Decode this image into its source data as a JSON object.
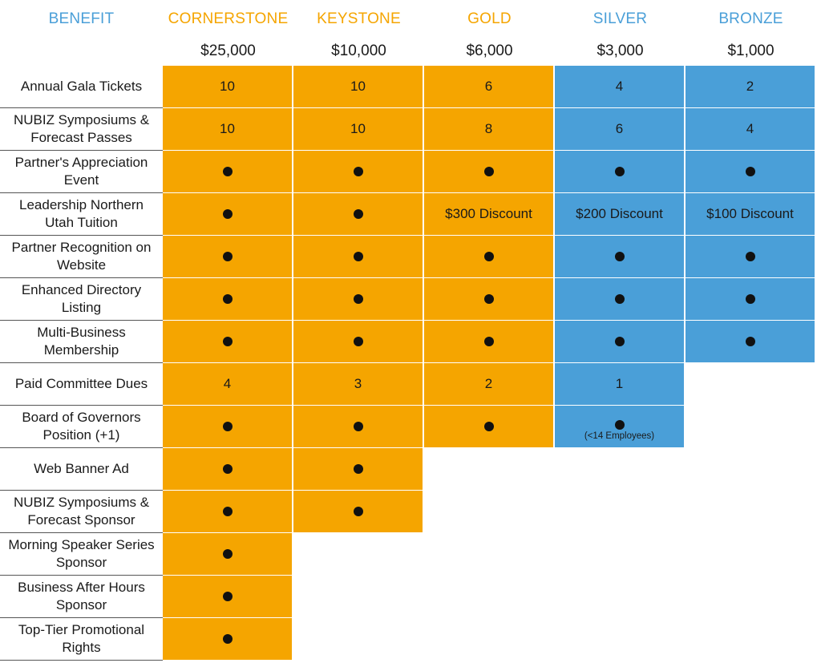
{
  "header": {
    "benefit_label": "BENEFIT",
    "tiers": [
      {
        "name": "CORNERSTONE",
        "price": "$25,000",
        "color": "#f5a500"
      },
      {
        "name": "KEYSTONE",
        "price": "$10,000",
        "color": "#f5a500"
      },
      {
        "name": "GOLD",
        "price": "$6,000",
        "color": "#f5a500"
      },
      {
        "name": "SILVER",
        "price": "$3,000",
        "color": "#4a9fd8"
      },
      {
        "name": "BRONZE",
        "price": "$1,000",
        "color": "#4a9fd8"
      }
    ],
    "benefit_color": "#4a9fd8"
  },
  "colors": {
    "orange": "#f5a500",
    "blue": "#4a9fd8"
  },
  "rows": [
    {
      "benefit": "Annual Gala Tickets",
      "values": [
        "10",
        "10",
        "6",
        "4",
        "2"
      ]
    },
    {
      "benefit": "NUBIZ Symposiums & Forecast Passes",
      "values": [
        "10",
        "10",
        "8",
        "6",
        "4"
      ]
    },
    {
      "benefit": "Partner's Appreciation Event",
      "values": [
        "●",
        "●",
        "●",
        "●",
        "●"
      ]
    },
    {
      "benefit": "Leadership Northern Utah Tuition",
      "values": [
        "●",
        "●",
        "$300 Discount",
        "$200 Discount",
        "$100 Discount"
      ]
    },
    {
      "benefit": "Partner Recognition on Website",
      "values": [
        "●",
        "●",
        "●",
        "●",
        "●"
      ]
    },
    {
      "benefit": "Enhanced Directory Listing",
      "values": [
        "●",
        "●",
        "●",
        "●",
        "●"
      ]
    },
    {
      "benefit": "Multi-Business Membership",
      "values": [
        "●",
        "●",
        "●",
        "●",
        "●"
      ]
    },
    {
      "benefit": "Paid Committee Dues",
      "values": [
        "4",
        "3",
        "2",
        "1",
        null
      ]
    },
    {
      "benefit": "Board of Governors Position (+1)",
      "values": [
        "●",
        "●",
        "●",
        "●",
        null
      ],
      "notes": [
        null,
        null,
        null,
        "(<14 Employees)",
        null
      ]
    },
    {
      "benefit": "Web Banner Ad",
      "values": [
        "●",
        "●",
        null,
        null,
        null
      ]
    },
    {
      "benefit": "NUBIZ Symposiums & Forecast Sponsor",
      "values": [
        "●",
        "●",
        null,
        null,
        null
      ]
    },
    {
      "benefit": "Morning Speaker Series Sponsor",
      "values": [
        "●",
        null,
        null,
        null,
        null
      ]
    },
    {
      "benefit": "Business After Hours Sponsor",
      "values": [
        "●",
        null,
        null,
        null,
        null
      ]
    },
    {
      "benefit": "Top-Tier Promotional Rights",
      "values": [
        "●",
        null,
        null,
        null,
        null
      ]
    }
  ]
}
